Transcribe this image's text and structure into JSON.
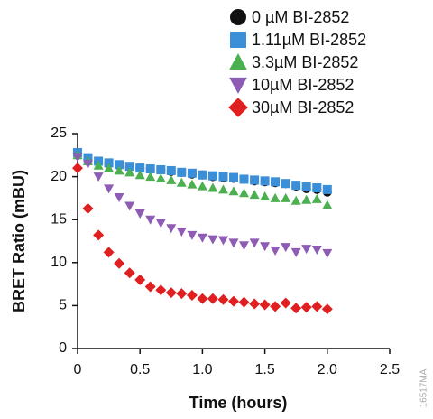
{
  "chart_data": {
    "type": "scatter",
    "x_label": "Time (hours)",
    "y_label": "BRET Ratio (mBU)",
    "annotation": "16517MA",
    "x": [
      0,
      0.083,
      0.167,
      0.25,
      0.333,
      0.417,
      0.5,
      0.583,
      0.667,
      0.75,
      0.833,
      0.917,
      1.0,
      1.083,
      1.167,
      1.25,
      1.333,
      1.417,
      1.5,
      1.583,
      1.667,
      1.75,
      1.833,
      1.917,
      2.0
    ],
    "series": [
      {
        "name": "0 µM BI-2852",
        "color": "#111111",
        "marker": "circle",
        "values": [
          22.5,
          22.0,
          21.7,
          21.5,
          21.3,
          21.1,
          21.0,
          20.9,
          20.8,
          20.6,
          20.5,
          20.3,
          20.2,
          20.0,
          19.9,
          19.8,
          19.7,
          19.5,
          19.4,
          19.3,
          19.2,
          18.9,
          18.6,
          18.5,
          18.2
        ]
      },
      {
        "name": "1.11µM BI-2852",
        "color": "#3b8fd8",
        "marker": "square",
        "values": [
          22.8,
          22.2,
          21.8,
          21.6,
          21.4,
          21.2,
          21.0,
          20.9,
          20.8,
          20.7,
          20.5,
          20.4,
          20.2,
          20.1,
          20.0,
          19.9,
          19.7,
          19.6,
          19.5,
          19.4,
          19.2,
          19.0,
          18.8,
          18.7,
          18.5
        ]
      },
      {
        "name": "3.3µM BI-2852",
        "color": "#4caf50",
        "marker": "triangle",
        "values": [
          22.5,
          21.8,
          21.3,
          21.0,
          20.7,
          20.5,
          20.2,
          20.0,
          19.8,
          19.6,
          19.3,
          19.1,
          18.9,
          18.7,
          18.5,
          18.3,
          18.1,
          17.9,
          17.7,
          17.5,
          17.5,
          17.2,
          17.3,
          17.4,
          16.7
        ]
      },
      {
        "name": "10µM BI-2852",
        "color": "#8e5bb5",
        "marker": "triangle-down",
        "values": [
          22.3,
          21.5,
          20.0,
          18.6,
          17.6,
          16.6,
          15.7,
          15.0,
          14.6,
          14.0,
          13.6,
          13.2,
          12.9,
          12.7,
          12.6,
          12.3,
          12.0,
          12.3,
          11.9,
          11.4,
          11.8,
          11.2,
          11.6,
          11.5,
          11.1
        ]
      },
      {
        "name": "30µM BI-2852",
        "color": "#e02020",
        "marker": "diamond",
        "values": [
          21.0,
          16.3,
          13.2,
          11.2,
          9.9,
          8.8,
          8.0,
          7.2,
          6.8,
          6.5,
          6.4,
          6.2,
          5.8,
          5.8,
          5.7,
          5.5,
          5.4,
          5.2,
          5.1,
          4.9,
          5.3,
          4.7,
          4.8,
          4.9,
          4.6
        ]
      }
    ],
    "xlim": [
      0,
      2.5
    ],
    "xticks": [
      0,
      0.5,
      {
        "value": 1,
        "label": "1.0"
      },
      1.5,
      {
        "value": 2,
        "label": "2.0"
      },
      2.5
    ],
    "ylim": [
      0,
      25
    ],
    "yticks": [
      0,
      5,
      10,
      15,
      20,
      25
    ]
  }
}
